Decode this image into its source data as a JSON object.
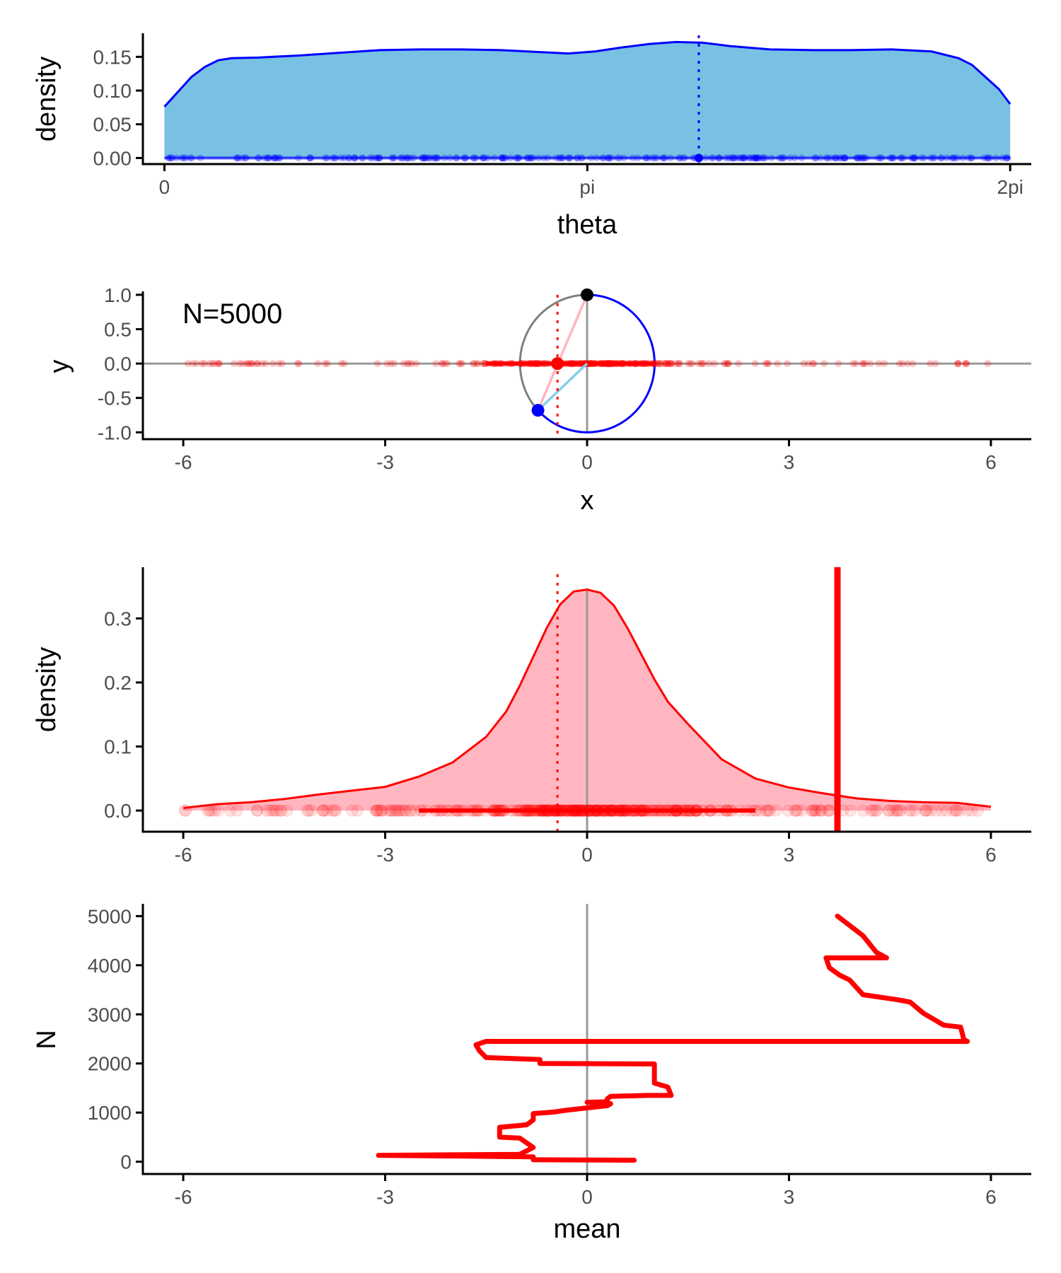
{
  "chart_data": [
    {
      "id": "theta-density",
      "type": "area",
      "xlabel": "theta",
      "ylabel": "density",
      "xlim": [
        -0.16,
        6.44
      ],
      "ylim": [
        -0.009,
        0.185
      ],
      "x_ticks": [
        0,
        3.14159,
        6.28319
      ],
      "x_tick_labels": [
        "0",
        "pi",
        "2pi"
      ],
      "y_ticks": [
        0,
        0.05,
        0.1,
        0.15
      ],
      "y_tick_labels": [
        "0.00",
        "0.05",
        "0.10",
        "0.15"
      ],
      "grid": false,
      "colors": {
        "fill": "#78c1e3",
        "line": "#0000ff",
        "points": "#0000ff"
      },
      "density_curve": {
        "x": [
          0.0,
          0.1,
          0.2,
          0.3,
          0.4,
          0.5,
          0.7,
          1.0,
          1.3,
          1.6,
          1.9,
          2.2,
          2.5,
          2.8,
          3.0,
          3.2,
          3.4,
          3.6,
          3.8,
          4.0,
          4.2,
          4.5,
          4.8,
          5.1,
          5.4,
          5.7,
          5.9,
          6.0,
          6.1,
          6.2,
          6.283
        ],
        "y": [
          0.076,
          0.098,
          0.12,
          0.135,
          0.145,
          0.148,
          0.149,
          0.152,
          0.156,
          0.16,
          0.161,
          0.161,
          0.16,
          0.157,
          0.155,
          0.158,
          0.164,
          0.169,
          0.172,
          0.171,
          0.166,
          0.161,
          0.16,
          0.16,
          0.161,
          0.158,
          0.148,
          0.138,
          0.12,
          0.102,
          0.08
        ]
      },
      "rug_y": 0,
      "rug_range": [
        0,
        6.283
      ],
      "reference_value": 3.97
    },
    {
      "id": "circle-projection",
      "type": "scatter",
      "xlabel": "x",
      "ylabel": "y",
      "xlim": [
        -6.6,
        6.6
      ],
      "ylim": [
        -1.1,
        1.05
      ],
      "x_ticks": [
        -6,
        -3,
        0,
        3,
        6
      ],
      "x_tick_labels": [
        "-6",
        "-3",
        "0",
        "3",
        "6"
      ],
      "y_ticks": [
        -1.0,
        -0.5,
        0.0,
        0.5,
        1.0
      ],
      "y_tick_labels": [
        "-1.0",
        "-0.5",
        "0.0",
        "0.5",
        "1.0"
      ],
      "grid": false,
      "annotation": "N=5000",
      "circle": {
        "cx": 0,
        "cy": 0,
        "r": 1
      },
      "pivot_point": {
        "x": 0,
        "y": 1
      },
      "sample_point": {
        "x": -0.73,
        "y": -0.68
      },
      "projected_point": {
        "x": -0.44,
        "y": 0
      },
      "projection_value": -0.44,
      "colors": {
        "pivot": "#000000",
        "sample": "#0000ff",
        "projected": "#ff0000",
        "arc_left": "#808080",
        "arc_right": "#0000ff",
        "chord": "#ffb6c1",
        "radius": "#87ceeb",
        "rug": "#ff0000"
      }
    },
    {
      "id": "projection-density",
      "type": "area",
      "xlabel": "",
      "ylabel": "density",
      "xlim": [
        -6.6,
        6.6
      ],
      "ylim": [
        -0.033,
        0.38
      ],
      "x_ticks": [
        -6,
        -3,
        0,
        3,
        6
      ],
      "x_tick_labels": [
        "-6",
        "-3",
        "0",
        "3",
        "6"
      ],
      "y_ticks": [
        0,
        0.1,
        0.2,
        0.3
      ],
      "y_tick_labels": [
        "0.0",
        "0.1",
        "0.2",
        "0.3"
      ],
      "grid": false,
      "colors": {
        "fill": "#ffb6c1",
        "line": "#ff0000",
        "points": "#ff0000",
        "mean_line": "#ff0000"
      },
      "density_curve": {
        "x": [
          -6.0,
          -5.5,
          -5.0,
          -4.5,
          -4.0,
          -3.5,
          -3.0,
          -2.5,
          -2.0,
          -1.5,
          -1.2,
          -1.0,
          -0.8,
          -0.6,
          -0.4,
          -0.2,
          0.0,
          0.2,
          0.4,
          0.6,
          0.8,
          1.0,
          1.2,
          1.5,
          2.0,
          2.5,
          3.0,
          3.5,
          4.0,
          4.5,
          5.0,
          5.5,
          6.0
        ],
        "y": [
          0.004,
          0.01,
          0.013,
          0.018,
          0.025,
          0.031,
          0.037,
          0.053,
          0.075,
          0.115,
          0.155,
          0.195,
          0.24,
          0.285,
          0.322,
          0.342,
          0.345,
          0.34,
          0.32,
          0.285,
          0.245,
          0.205,
          0.17,
          0.135,
          0.08,
          0.05,
          0.036,
          0.027,
          0.019,
          0.015,
          0.013,
          0.012,
          0.006
        ]
      },
      "rug_y": 0,
      "rug_range": [
        -6,
        6
      ],
      "reference_value": -0.44,
      "current_mean": 3.72
    },
    {
      "id": "running-mean",
      "type": "line",
      "xlabel": "mean",
      "ylabel": "N",
      "xlim": [
        -6.6,
        6.6
      ],
      "ylim": [
        -250,
        5250
      ],
      "x_ticks": [
        -6,
        -3,
        0,
        3,
        6
      ],
      "x_tick_labels": [
        "-6",
        "-3",
        "0",
        "3",
        "6"
      ],
      "y_ticks": [
        0,
        1000,
        2000,
        3000,
        4000,
        5000
      ],
      "y_tick_labels": [
        "0",
        "1000",
        "2000",
        "3000",
        "4000",
        "5000"
      ],
      "grid": false,
      "colors": {
        "line": "#ff0000",
        "zero_line": "#999999"
      },
      "path": {
        "mean": [
          0.7,
          -0.8,
          -0.8,
          -3.1,
          -1.0,
          -0.8,
          -1.0,
          -1.3,
          -1.3,
          -0.9,
          -0.8,
          -0.8,
          -0.5,
          -0.3,
          0.3,
          0.35,
          0.0,
          0.3,
          0.3,
          0.35,
          0.9,
          1.25,
          1.2,
          1.0,
          1.0,
          -0.7,
          -0.7,
          -1.5,
          -1.6,
          -1.65,
          -1.5,
          5.65,
          5.6,
          5.55,
          5.3,
          5.0,
          4.8,
          4.6,
          4.1,
          3.9,
          3.75,
          3.6,
          3.55,
          4.45,
          4.3,
          4.1,
          3.72
        ],
        "n": [
          30,
          40,
          100,
          130,
          150,
          290,
          480,
          500,
          700,
          750,
          850,
          980,
          1010,
          1050,
          1140,
          1180,
          1210,
          1220,
          1280,
          1330,
          1350,
          1350,
          1520,
          1600,
          1990,
          2000,
          2080,
          2120,
          2260,
          2380,
          2450,
          2450,
          2480,
          2740,
          2780,
          3020,
          3250,
          3300,
          3400,
          3700,
          3800,
          3950,
          4150,
          4150,
          4260,
          4600,
          5000
        ]
      },
      "zero_reference": 0
    }
  ]
}
